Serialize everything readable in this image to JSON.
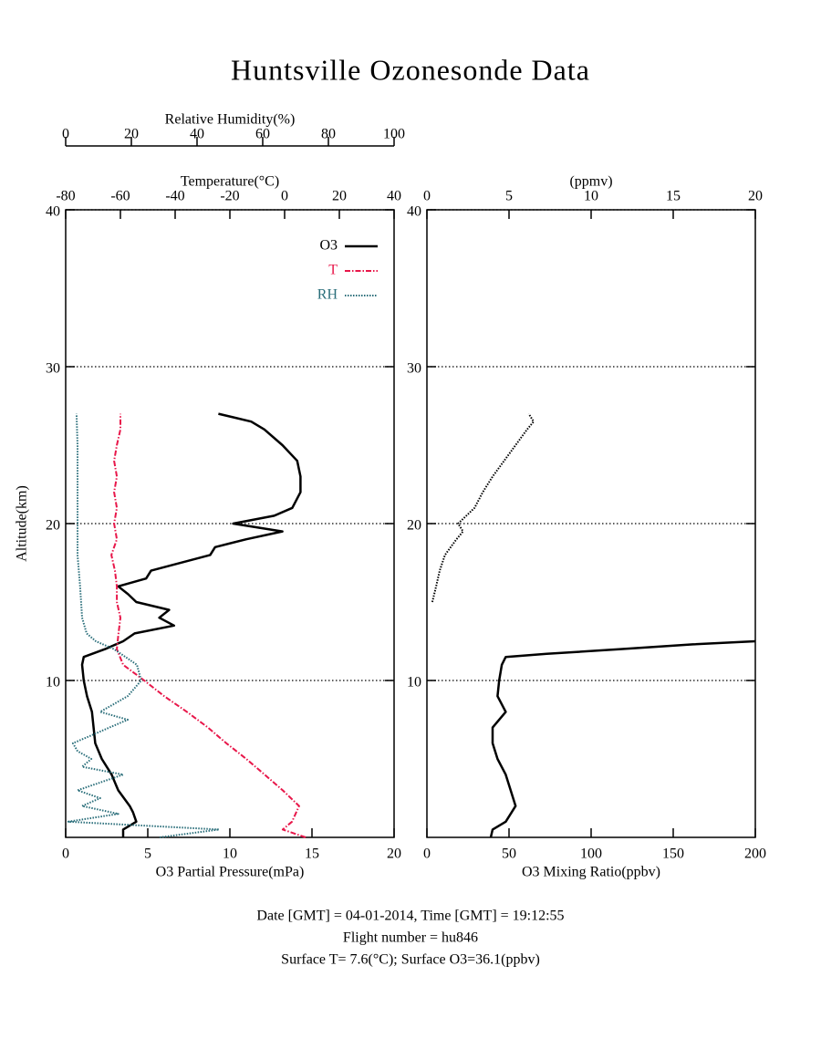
{
  "title": "Huntsville Ozonesonde Data",
  "footer": [
    "Date [GMT] = 04-01-2014,  Time [GMT] = 19:12:55",
    "Flight number = hu846",
    "Surface T= 7.6(°C); Surface O3=36.1(ppbv)"
  ],
  "chart_data": [
    {
      "type": "line",
      "ylabel": "Altitude(km)",
      "ylim": [
        0,
        40
      ],
      "yticks": [
        10,
        20,
        30,
        40
      ],
      "grid": true,
      "xlabel": "O3 Partial Pressure(mPa)",
      "xlim": [
        0,
        20
      ],
      "xticks": [
        0,
        5,
        10,
        15,
        20
      ],
      "x2label": "Temperature(°C)",
      "x2lim": [
        -80,
        40
      ],
      "x2ticks": [
        -80,
        -60,
        -40,
        -20,
        0,
        20,
        40
      ],
      "x3label": "Relative Humidity(%)",
      "x3lim": [
        0,
        100
      ],
      "x3ticks": [
        0,
        20,
        40,
        60,
        80,
        100
      ],
      "legend": "upper right",
      "series": [
        {
          "name": "O3",
          "color": "#000000",
          "linestyle": "solid",
          "axis": "x",
          "x": [
            3.5,
            3.5,
            4.3,
            4.1,
            3.9,
            3.2,
            2.8,
            2.2,
            1.8,
            1.7,
            1.6,
            1.3,
            1.1,
            1.0,
            1.1,
            2.4,
            3.5,
            4.2,
            6.6,
            5.7,
            6.3,
            4.3,
            3.8,
            3.2,
            4.9,
            5.2,
            8.8,
            9.1,
            11.0,
            13.2,
            10.2,
            12.7,
            13.8,
            14.3,
            14.3,
            14.1,
            13.2,
            12.1,
            11.3,
            9.3
          ],
          "y": [
            0,
            0.5,
            1,
            1.6,
            2,
            3,
            4,
            5,
            6,
            7,
            8,
            9,
            10,
            11,
            11.5,
            12,
            12.5,
            13,
            13.5,
            14,
            14.5,
            15,
            15.5,
            16,
            16.5,
            17,
            18,
            18.5,
            19,
            19.5,
            20,
            20.5,
            21,
            22,
            23,
            24,
            25,
            26,
            26.5,
            27
          ]
        },
        {
          "name": "T",
          "color": "#e8174a",
          "linestyle": "dashdot",
          "axis": "x2",
          "x": [
            7.7,
            -0.7,
            2.7,
            5.3,
            -0.7,
            -7.3,
            -14,
            -21.3,
            -28,
            -35.7,
            -44,
            -51.3,
            -59,
            -61.3,
            -60.7,
            -60,
            -61.3,
            -61.3,
            -62,
            -63.3,
            -61.3,
            -62.3,
            -61.3,
            -62.3,
            -61.3,
            -62.3,
            -61.3,
            -60,
            -60
          ],
          "y": [
            0,
            0.5,
            1,
            2,
            3,
            4,
            5,
            6,
            7,
            8,
            9,
            10,
            11,
            12,
            13,
            14,
            15,
            16,
            17,
            18,
            19,
            20,
            21,
            22,
            23,
            24,
            25,
            26,
            27
          ]
        },
        {
          "name": "RH",
          "color": "#2a6e7a",
          "linestyle": "dotted",
          "axis": "x3",
          "x": [
            28.6,
            46.7,
            0.8,
            16,
            5,
            10.5,
            3.6,
            17.5,
            5,
            7.8,
            3.6,
            2.2,
            7.8,
            13.3,
            18.9,
            10.5,
            18.9,
            23,
            21.7,
            14.7,
            9.2,
            6.4,
            5,
            4.4,
            3.6,
            3.6,
            3.6,
            3.6,
            3.3
          ],
          "y": [
            0,
            0.5,
            1,
            1.5,
            2,
            2.5,
            3,
            4,
            4.5,
            5,
            5.5,
            6,
            6.5,
            7,
            7.5,
            8,
            9,
            10,
            11,
            12,
            12.5,
            13,
            14,
            16,
            18,
            20,
            22,
            25,
            27
          ]
        }
      ]
    },
    {
      "type": "line",
      "ylim": [
        0,
        40
      ],
      "yticks": [
        10,
        20,
        30,
        40
      ],
      "grid": true,
      "xlabel": "O3 Mixing Ratio(ppbv)",
      "xlim": [
        0,
        200
      ],
      "xticks": [
        0,
        50,
        100,
        150,
        200
      ],
      "x2label": "(ppmv)",
      "x2lim": [
        0,
        20
      ],
      "x2ticks": [
        0,
        5,
        10,
        15,
        20
      ],
      "series": [
        {
          "color": "#000000",
          "linestyle": "solid",
          "axis": "x",
          "x": [
            38.9,
            40,
            48,
            54,
            51,
            48,
            43,
            40,
            40,
            48,
            43,
            44,
            45.6,
            48,
            73,
            118,
            162,
            200
          ],
          "y": [
            0,
            0.5,
            1,
            2,
            3,
            4,
            5,
            6,
            7,
            8,
            9,
            10,
            11,
            11.5,
            11.7,
            12,
            12.3,
            12.5
          ]
        },
        {
          "color": "#000000",
          "linestyle": "dotted",
          "axis": "x2",
          "x": [
            0.33,
            0.56,
            0.78,
            1.1,
            1.8,
            2.2,
            1.9,
            2.9,
            3.4,
            4.0,
            4.7,
            5.4,
            6.1,
            6.5,
            6.2
          ],
          "y": [
            15,
            16,
            17,
            18,
            19,
            19.5,
            20,
            21,
            22,
            23,
            24,
            25,
            26,
            26.5,
            27
          ]
        }
      ]
    }
  ]
}
